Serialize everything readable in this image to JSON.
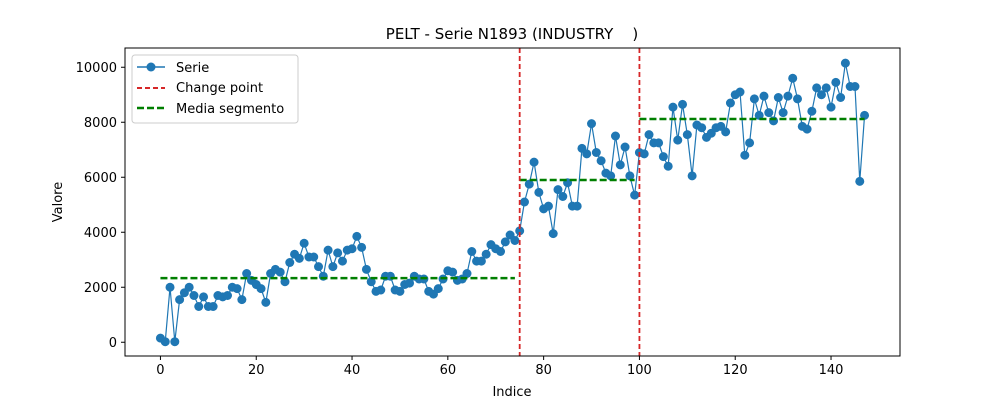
{
  "chart_data": {
    "type": "line",
    "title": "PELT - Serie N1893 (INDUSTRY    )",
    "xlabel": "Indice",
    "ylabel": "Valore",
    "xlim": [
      -7.4,
      154.4
    ],
    "ylim": [
      -500,
      10700
    ],
    "xticks": [
      0,
      20,
      40,
      60,
      80,
      100,
      120,
      140
    ],
    "yticks": [
      0,
      2000,
      4000,
      6000,
      8000,
      10000
    ],
    "legend_position": "upper-left",
    "legend": [
      "Serie",
      "Change point",
      "Media segmento"
    ],
    "colors": {
      "series": "#1f77b4",
      "change_point": "#d62728",
      "segment_mean": "#007f00"
    },
    "series": [
      {
        "name": "Serie",
        "x": [
          0,
          1,
          2,
          3,
          4,
          5,
          6,
          7,
          8,
          9,
          10,
          11,
          12,
          13,
          14,
          15,
          16,
          17,
          18,
          19,
          20,
          21,
          22,
          23,
          24,
          25,
          26,
          27,
          28,
          29,
          30,
          31,
          32,
          33,
          34,
          35,
          36,
          37,
          38,
          39,
          40,
          41,
          42,
          43,
          44,
          45,
          46,
          47,
          48,
          49,
          50,
          51,
          52,
          53,
          54,
          55,
          56,
          57,
          58,
          59,
          60,
          61,
          62,
          63,
          64,
          65,
          66,
          67,
          68,
          69,
          70,
          71,
          72,
          73,
          74,
          75,
          76,
          77,
          78,
          79,
          80,
          81,
          82,
          83,
          84,
          85,
          86,
          87,
          88,
          89,
          90,
          91,
          92,
          93,
          94,
          95,
          96,
          97,
          98,
          99,
          100,
          101,
          102,
          103,
          104,
          105,
          106,
          107,
          108,
          109,
          110,
          111,
          112,
          113,
          114,
          115,
          116,
          117,
          118,
          119,
          120,
          121,
          122,
          123,
          124,
          125,
          126,
          127,
          128,
          129,
          130,
          131,
          132,
          133,
          134,
          135,
          136,
          137,
          138,
          139,
          140,
          141,
          142,
          143,
          144,
          145,
          146,
          147
        ],
        "y": [
          150,
          20,
          2000,
          20,
          1550,
          1800,
          2000,
          1700,
          1300,
          1650,
          1300,
          1300,
          1700,
          1650,
          1700,
          2000,
          1950,
          1550,
          2500,
          2250,
          2100,
          1950,
          1450,
          2500,
          2650,
          2550,
          2200,
          2900,
          3200,
          3050,
          3600,
          3100,
          3100,
          2750,
          2400,
          3350,
          2750,
          3250,
          2950,
          3350,
          3400,
          3850,
          3450,
          2650,
          2200,
          1850,
          1900,
          2400,
          2400,
          1900,
          1850,
          2100,
          2150,
          2400,
          2300,
          2300,
          1850,
          1750,
          1950,
          2300,
          2600,
          2550,
          2250,
          2300,
          2500,
          3300,
          2950,
          2950,
          3200,
          3550,
          3400,
          3300,
          3650,
          3900,
          3700,
          4050,
          5100,
          5750,
          6550,
          5450,
          4850,
          4950,
          3950,
          5550,
          5300,
          5800,
          4950,
          4950,
          7050,
          6850,
          7950,
          6900,
          6600,
          6150,
          6050,
          7500,
          6450,
          7100,
          6050,
          5350,
          6900,
          6850,
          7550,
          7250,
          7250,
          6750,
          6400,
          8550,
          7350,
          8650,
          7550,
          6050,
          7900,
          7800,
          7450,
          7600,
          7800,
          7850,
          7650,
          8700,
          9000,
          9100,
          6800,
          7250,
          8850,
          8250,
          8950,
          8350,
          8050,
          8900,
          8350,
          8950,
          9600,
          8850,
          7850,
          7750,
          8400,
          9250,
          9000,
          9250,
          8550,
          9450,
          8900,
          10150,
          9300,
          9300,
          5850,
          8250
        ]
      }
    ],
    "change_points": [
      75,
      100
    ],
    "segments": [
      {
        "x": [
          0,
          74
        ],
        "mean": 2330
      },
      {
        "x": [
          75,
          99
        ],
        "mean": 5900
      },
      {
        "x": [
          100,
          147
        ],
        "mean": 8120
      }
    ]
  }
}
